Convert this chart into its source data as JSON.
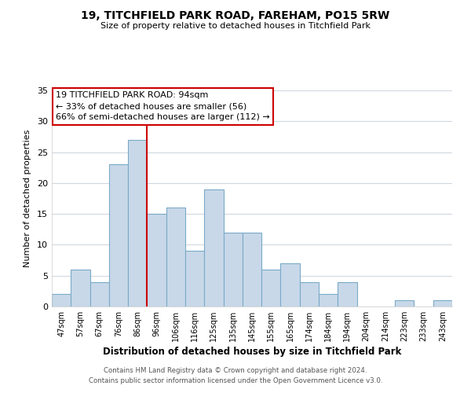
{
  "title": "19, TITCHFIELD PARK ROAD, FAREHAM, PO15 5RW",
  "subtitle": "Size of property relative to detached houses in Titchfield Park",
  "xlabel": "Distribution of detached houses by size in Titchfield Park",
  "ylabel": "Number of detached properties",
  "bar_labels": [
    "47sqm",
    "57sqm",
    "67sqm",
    "76sqm",
    "86sqm",
    "96sqm",
    "106sqm",
    "116sqm",
    "125sqm",
    "135sqm",
    "145sqm",
    "155sqm",
    "165sqm",
    "174sqm",
    "184sqm",
    "194sqm",
    "204sqm",
    "214sqm",
    "223sqm",
    "233sqm",
    "243sqm"
  ],
  "bar_values": [
    2,
    6,
    4,
    23,
    27,
    15,
    16,
    9,
    19,
    12,
    12,
    6,
    7,
    4,
    2,
    4,
    0,
    0,
    1,
    0,
    1
  ],
  "bar_color": "#c8d8e8",
  "bar_edge_color": "#7aaac8",
  "ylim": [
    0,
    35
  ],
  "yticks": [
    0,
    5,
    10,
    15,
    20,
    25,
    30,
    35
  ],
  "vline_color": "#cc0000",
  "annotation_title": "19 TITCHFIELD PARK ROAD: 94sqm",
  "annotation_line1": "← 33% of detached houses are smaller (56)",
  "annotation_line2": "66% of semi-detached houses are larger (112) →",
  "footer1": "Contains HM Land Registry data © Crown copyright and database right 2024.",
  "footer2": "Contains public sector information licensed under the Open Government Licence v3.0.",
  "background_color": "#ffffff",
  "grid_color": "#d0d8e0"
}
